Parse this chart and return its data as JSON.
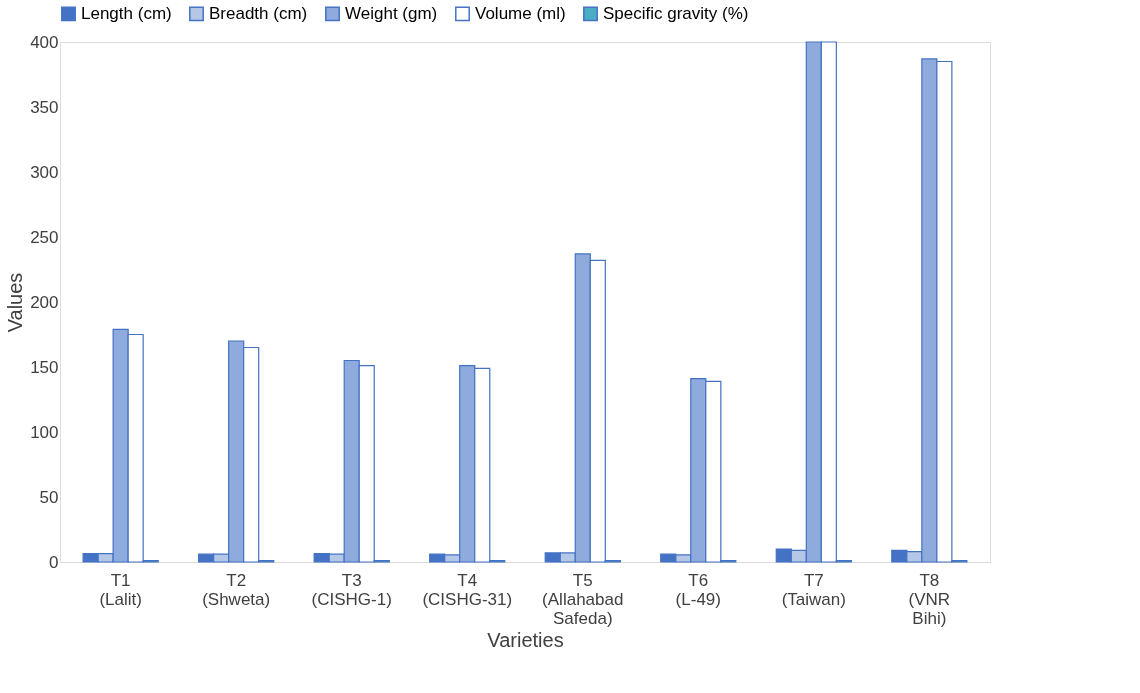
{
  "chart_data": {
    "type": "bar",
    "xlabel": "Varieties",
    "ylabel": "Values",
    "categories": [
      "T1 (Lalit)",
      "T2 (Shweta)",
      "T3 (CISHG-1)",
      "T4 (CISHG-31)",
      "T5 (Allahabad Safeda)",
      "T6 (L-49)",
      "T7 (Taiwan)",
      "T8 (VNR Bihi)"
    ],
    "series": [
      {
        "name": "Length (cm)",
        "color": "#4472c4",
        "values": [
          6.5,
          6,
          6.5,
          6,
          7,
          6,
          10,
          9
        ]
      },
      {
        "name": "Breadth (cm)",
        "color": "#b4c7e7",
        "values": [
          6.5,
          6,
          6,
          5.5,
          7,
          5.5,
          9,
          8
        ]
      },
      {
        "name": "Weight (gm)",
        "color": "#8faadc",
        "values": [
          179,
          170,
          155,
          151,
          237,
          141,
          400,
          387
        ]
      },
      {
        "name": "Volume (ml)",
        "color": "#ffffff",
        "values": [
          175,
          165,
          151,
          149,
          232,
          139,
          400,
          385
        ]
      },
      {
        "name": "Specific gravity (%)",
        "color": "#4bacc6",
        "values": [
          1,
          1,
          1,
          1,
          1,
          1,
          1,
          1
        ]
      }
    ],
    "ylim": [
      0,
      400
    ],
    "yticks": [
      0,
      50,
      100,
      150,
      200,
      250,
      300,
      350,
      400
    ],
    "grid": false,
    "legend": "top"
  }
}
